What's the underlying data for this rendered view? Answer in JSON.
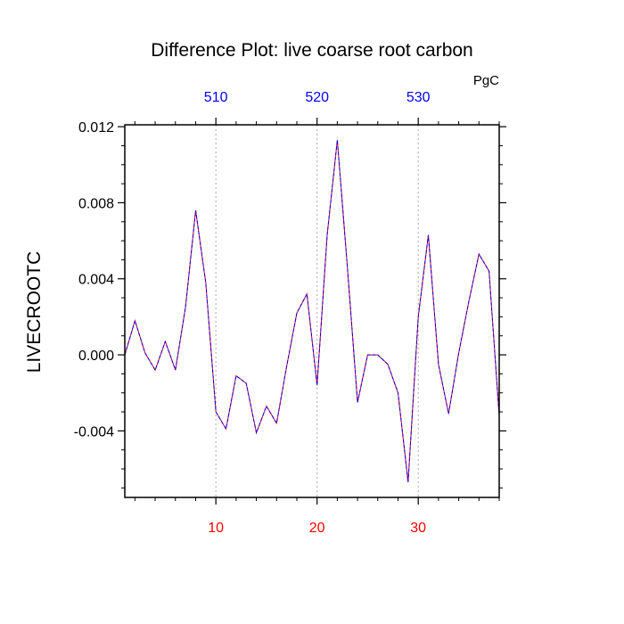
{
  "chart_data": {
    "type": "line",
    "title": "Difference Plot: live coarse root carbon",
    "units": "PgC",
    "ylabel": "LIVECROOTC",
    "xlabel": "",
    "xlim": [
      1,
      38
    ],
    "ylim": [
      -0.0075,
      0.0121
    ],
    "yticks": [
      "0.012",
      "0.008",
      "0.004",
      "0.000",
      "-0.004"
    ],
    "ytick_values": [
      0.012,
      0.008,
      0.004,
      0.0,
      -0.004
    ],
    "xticks_bottom": [
      "10",
      "20",
      "30"
    ],
    "xtick_bottom_values": [
      10,
      20,
      30
    ],
    "xticks_top": [
      "510",
      "520",
      "530"
    ],
    "grid": "vertical dotted lines at x ticks",
    "series": [
      {
        "color_primary": "#ff0000",
        "color_secondary": "#0000ff",
        "x": [
          1,
          2,
          3,
          4,
          5,
          6,
          7,
          8,
          9,
          10,
          11,
          12,
          13,
          14,
          15,
          16,
          17,
          18,
          19,
          20,
          21,
          22,
          23,
          24,
          25,
          26,
          27,
          28,
          29,
          30,
          31,
          32,
          33,
          34,
          35,
          36,
          37,
          38
        ],
        "y": [
          0.0,
          0.0018,
          0.0001,
          -0.0008,
          0.0007,
          -0.0008,
          0.0025,
          0.0076,
          0.0038,
          -0.003,
          -0.0039,
          -0.0011,
          -0.0015,
          -0.0041,
          -0.0027,
          -0.0036,
          -0.0006,
          0.0022,
          0.0032,
          -0.0016,
          0.0063,
          0.0113,
          0.0046,
          -0.0025,
          0.0,
          0.0,
          -0.0005,
          -0.002,
          -0.0067,
          0.002,
          0.0063,
          -0.0005,
          -0.0031,
          0.0001,
          0.0028,
          0.0053,
          0.0044,
          -0.0032
        ]
      }
    ]
  }
}
